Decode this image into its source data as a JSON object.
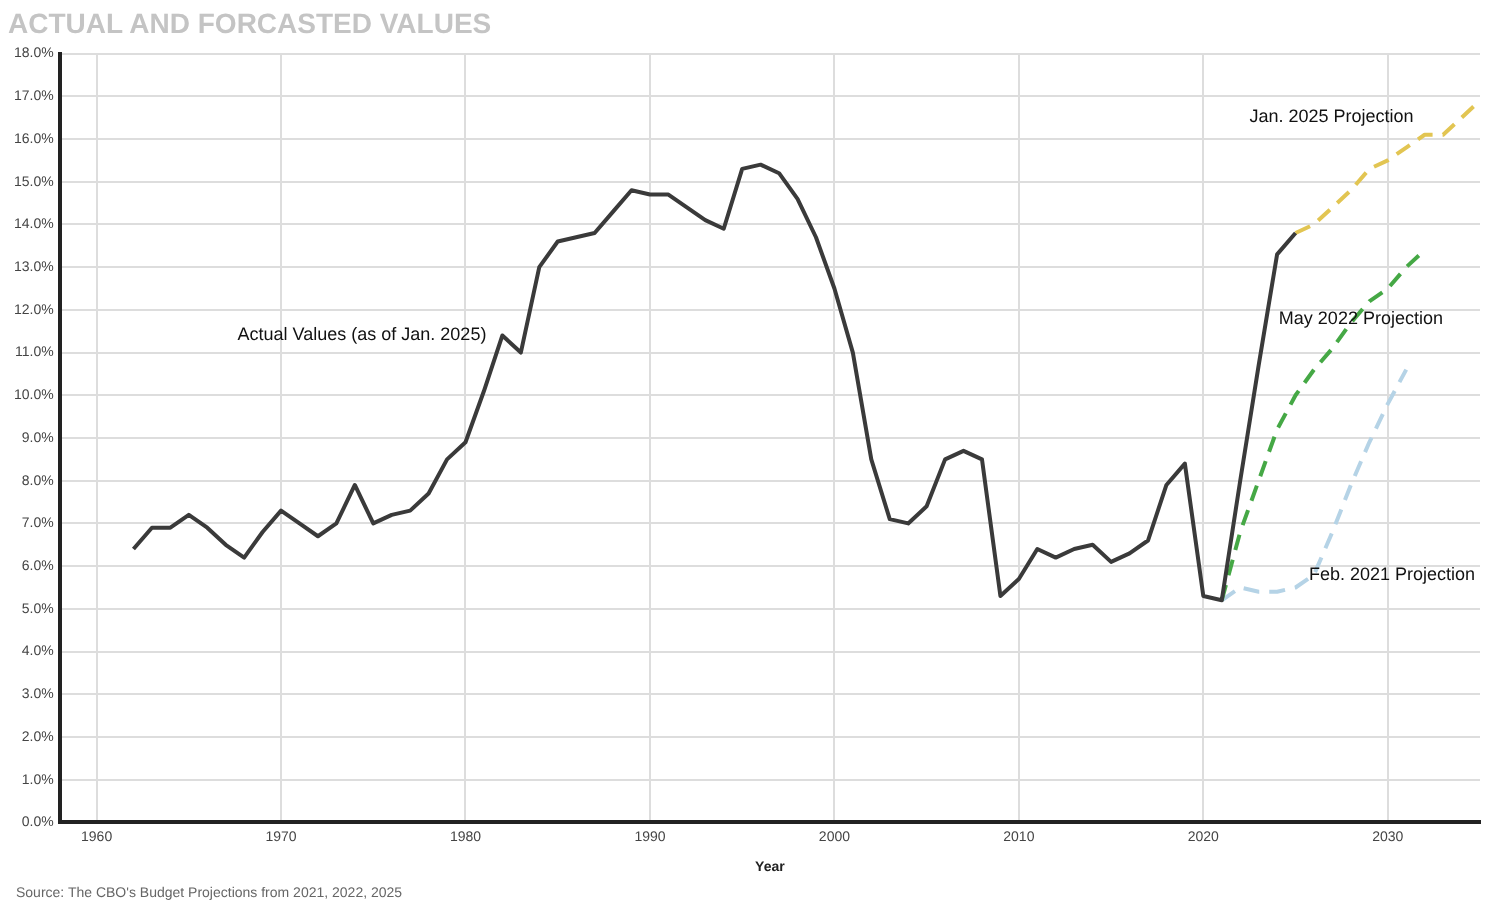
{
  "chart_data": {
    "type": "line",
    "title": "ACTUAL AND FORCASTED VALUES",
    "xlabel": "Year",
    "xlim": [
      1958,
      2035
    ],
    "xticks": [
      1960,
      1970,
      1980,
      1990,
      2000,
      2010,
      2020,
      2030
    ],
    "ylim": [
      0,
      18
    ],
    "yticks": [
      {
        "value": 0,
        "label": "0.0%"
      },
      {
        "value": 1,
        "label": "1.0%"
      },
      {
        "value": 2,
        "label": "2.0%"
      },
      {
        "value": 3,
        "label": "3.0%"
      },
      {
        "value": 4,
        "label": "4.0%"
      },
      {
        "value": 5,
        "label": "5.0%"
      },
      {
        "value": 6,
        "label": "6.0%"
      },
      {
        "value": 7,
        "label": "7.0%"
      },
      {
        "value": 8,
        "label": "8.0%"
      },
      {
        "value": 9,
        "label": "9.0%"
      },
      {
        "value": 10,
        "label": "10.0%"
      },
      {
        "value": 11,
        "label": "11.0%"
      },
      {
        "value": 12,
        "label": "12.0%"
      },
      {
        "value": 13,
        "label": "13.0%"
      },
      {
        "value": 14,
        "label": "14.0%"
      },
      {
        "value": 15,
        "label": "15.0%"
      },
      {
        "value": 16,
        "label": "16.0%"
      },
      {
        "value": 17,
        "label": "17.0%"
      },
      {
        "value": 18,
        "label": "18.0%"
      }
    ],
    "grid": true,
    "marker": "none",
    "legend": false,
    "series": [
      {
        "name": "Actual Values (as of Jan. 2025)",
        "color": "#3a3a3a",
        "line_style": "solid",
        "x": [
          1962,
          1963,
          1964,
          1965,
          1966,
          1967,
          1968,
          1969,
          1970,
          1971,
          1972,
          1973,
          1974,
          1975,
          1976,
          1977,
          1978,
          1979,
          1980,
          1981,
          1982,
          1983,
          1984,
          1985,
          1986,
          1987,
          1988,
          1989,
          1990,
          1991,
          1992,
          1993,
          1994,
          1995,
          1996,
          1997,
          1998,
          1999,
          2000,
          2001,
          2002,
          2003,
          2004,
          2005,
          2006,
          2007,
          2008,
          2009,
          2010,
          2011,
          2012,
          2013,
          2014,
          2015,
          2016,
          2017,
          2018,
          2019,
          2020,
          2021,
          2022,
          2023,
          2024,
          2025
        ],
        "values": [
          6.4,
          6.9,
          6.9,
          7.2,
          6.9,
          6.5,
          6.2,
          6.8,
          7.3,
          7.0,
          6.7,
          7.0,
          7.9,
          7.0,
          7.2,
          7.3,
          7.7,
          8.5,
          8.9,
          10.1,
          11.4,
          11.0,
          13.0,
          13.6,
          13.7,
          13.8,
          14.3,
          14.8,
          14.7,
          14.7,
          14.4,
          14.1,
          13.9,
          15.3,
          15.4,
          15.2,
          14.6,
          13.7,
          12.5,
          11.0,
          8.5,
          7.1,
          7.0,
          7.4,
          8.5,
          8.7,
          8.5,
          5.3,
          5.7,
          6.4,
          6.2,
          6.4,
          6.5,
          6.1,
          6.3,
          6.6,
          7.9,
          8.4,
          5.3,
          5.2,
          8.0,
          10.7,
          13.3,
          13.8
        ]
      },
      {
        "name": "Jan. 2025 Projection",
        "color": "#e2c552",
        "line_style": "dashed",
        "x": [
          2025,
          2026,
          2027,
          2028,
          2029,
          2030,
          2031,
          2032,
          2033,
          2034,
          2035
        ],
        "values": [
          13.8,
          14.0,
          14.4,
          14.8,
          15.3,
          15.5,
          15.8,
          16.1,
          16.1,
          16.5,
          16.9
        ]
      },
      {
        "name": "May 2022 Projection",
        "color": "#45a845",
        "line_style": "dashed",
        "x": [
          2021,
          2022,
          2023,
          2024,
          2025,
          2026,
          2027,
          2028,
          2029,
          2030,
          2031,
          2032
        ],
        "values": [
          5.2,
          6.8,
          8.0,
          9.2,
          10.0,
          10.6,
          11.1,
          11.7,
          12.2,
          12.5,
          13.0,
          13.4
        ]
      },
      {
        "name": "Feb. 2021 Projection",
        "color": "#b5d3e6",
        "line_style": "dashed",
        "x": [
          2021,
          2022,
          2023,
          2024,
          2025,
          2026,
          2027,
          2028,
          2029,
          2030,
          2031
        ],
        "values": [
          5.2,
          5.5,
          5.4,
          5.4,
          5.5,
          5.8,
          6.8,
          7.9,
          8.9,
          9.8,
          10.6
        ]
      }
    ],
    "annotations": [
      "Source: The CBO's Budget Projections from 2021, 2022, 2025"
    ]
  }
}
